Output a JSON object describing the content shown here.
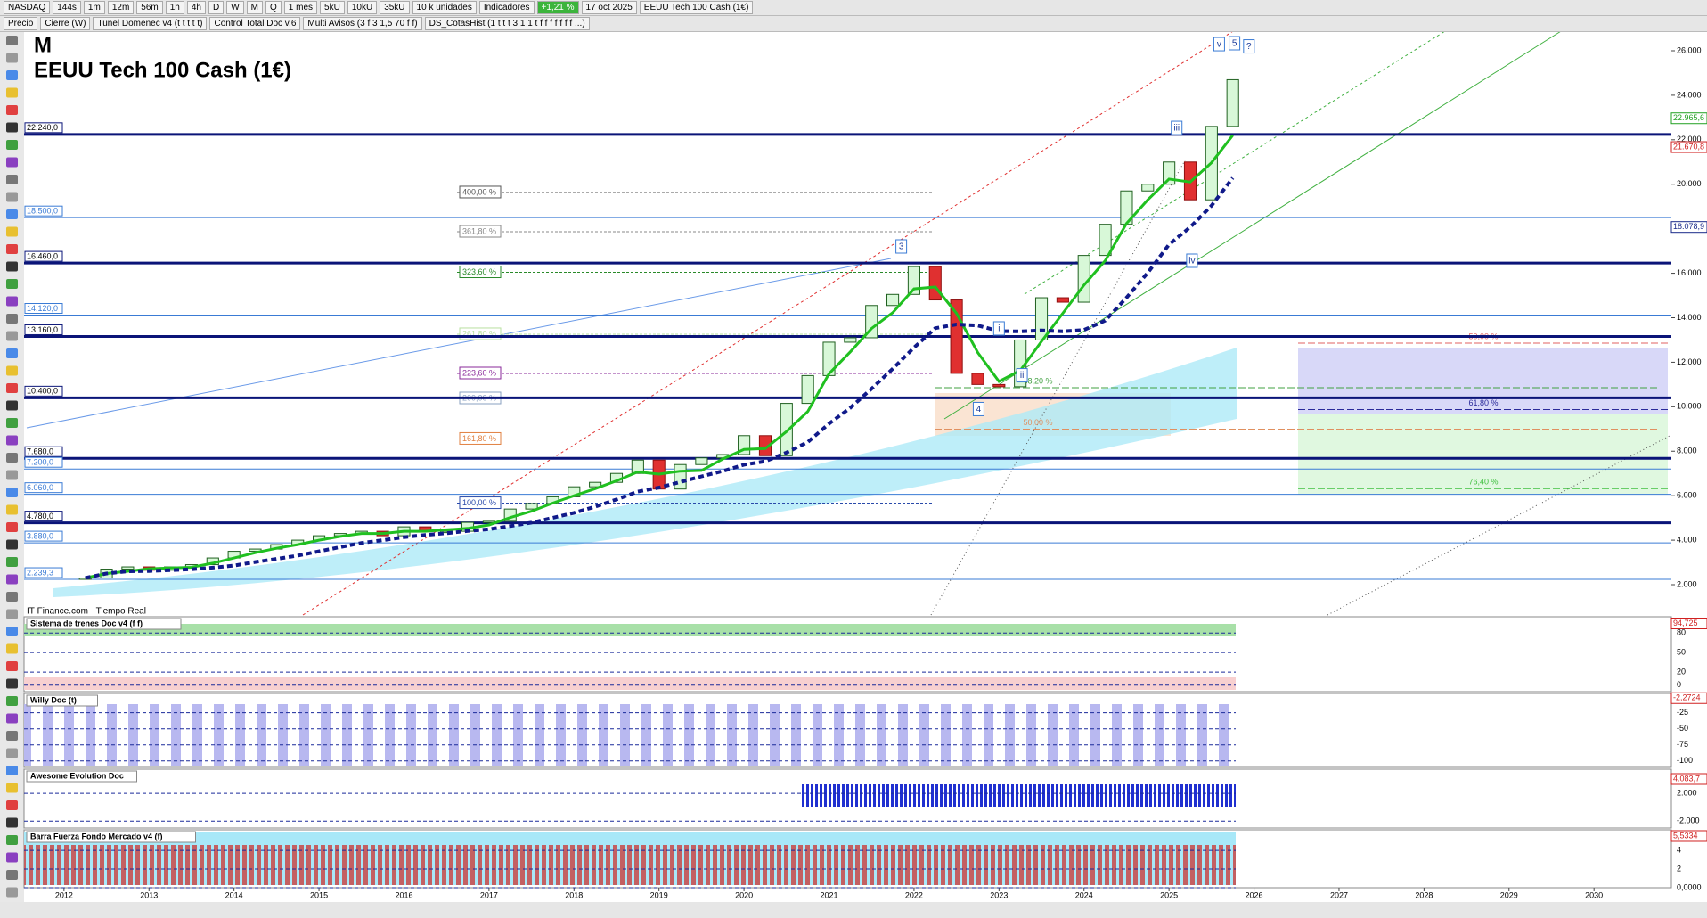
{
  "toolbar": {
    "items": [
      "NASDAQ",
      "144s",
      "1m",
      "12m",
      "56m",
      "1h",
      "4h",
      "D",
      "W",
      "M",
      "Q",
      "1 mes",
      "5kU",
      "10kU",
      "35kU",
      "10 k unidades",
      "Indicadores"
    ],
    "change": "+1,21 %",
    "date": "17 oct 2025",
    "instrument": "EEUU Tech 100 Cash (1€)"
  },
  "indicators": [
    "Precio",
    "Cierre (W)",
    "Tunel Domenec v4 (t t t t t)",
    "Control Total Doc v.6",
    "Multi Avisos (3 f 3 1,5 70 f f)",
    "DS_CotasHist (1 t t t 3 1 1 t f f f f f f f ...)"
  ],
  "chart": {
    "type": "candlestick",
    "period": "M",
    "title": "EEUU Tech 100 Cash (1€)",
    "source": "IT-Finance.com - Tiempo Real",
    "x": [
      2012.25,
      2012.5,
      2012.75,
      2013,
      2013.25,
      2013.5,
      2013.75,
      2014,
      2014.25,
      2014.5,
      2014.75,
      2015,
      2015.25,
      2015.5,
      2015.75,
      2016,
      2016.25,
      2016.5,
      2016.75,
      2017,
      2017.25,
      2017.5,
      2017.75,
      2018,
      2018.25,
      2018.5,
      2018.75,
      2019,
      2019.25,
      2019.5,
      2019.75,
      2020,
      2020.25,
      2020.5,
      2020.75,
      2021,
      2021.25,
      2021.5,
      2021.75,
      2022,
      2022.25,
      2022.5,
      2022.75,
      2023,
      2023.25,
      2023.5,
      2023.75,
      2024,
      2024.25,
      2024.5,
      2024.75,
      2025,
      2025.25,
      2025.5,
      2025.75
    ],
    "closes": [
      2300,
      2700,
      2800,
      2650,
      2800,
      2900,
      3200,
      3500,
      3600,
      3800,
      4000,
      4200,
      4300,
      4400,
      4200,
      4600,
      4400,
      4400,
      4800,
      4850,
      5400,
      5650,
      5950,
      6400,
      6600,
      7000,
      7600,
      6300,
      7400,
      7700,
      7850,
      8700,
      7800,
      10150,
      11400,
      12900,
      13100,
      14550,
      15050,
      16300,
      14800,
      11500,
      11000,
      10900,
      13000,
      14900,
      14700,
      16800,
      18200,
      19700,
      20000,
      21000,
      19300,
      22600,
      24700
    ],
    "xlim": [
      2011.53,
      2030.91
    ],
    "xticks": [
      2012,
      2013,
      2014,
      2015,
      2016,
      2017,
      2018,
      2019,
      2020,
      2021,
      2022,
      2023,
      2024,
      2025,
      2026,
      2027,
      2028,
      2029,
      2030
    ],
    "ylim": [
      638,
      26801
    ],
    "yticks": [
      {
        "value": 2000,
        "label": "2.000"
      },
      {
        "value": 4000,
        "label": "4.000"
      },
      {
        "value": 6000,
        "label": "6.000"
      },
      {
        "value": 8000,
        "label": "8.000"
      },
      {
        "value": 10000,
        "label": "10.000"
      },
      {
        "value": 12000,
        "label": "12.000"
      },
      {
        "value": 14000,
        "label": "14.000"
      },
      {
        "value": 16000,
        "label": "16.000"
      },
      {
        "value": 18000,
        "label": "18.000"
      },
      {
        "value": 20000,
        "label": "20.000"
      },
      {
        "value": 22000,
        "label": "22.000"
      },
      {
        "value": 24000,
        "label": "24.000"
      },
      {
        "value": 26000,
        "label": "26.000"
      }
    ],
    "levels": [
      {
        "value": 22240,
        "label": "22.240,0",
        "weight": "heavy"
      },
      {
        "value": 18500,
        "label": "18.500,0",
        "weight": "light"
      },
      {
        "value": 16460,
        "label": "16.460,0",
        "weight": "heavy"
      },
      {
        "value": 14120,
        "label": "14.120,0",
        "weight": "light"
      },
      {
        "value": 13160,
        "label": "13.160,0",
        "weight": "heavy"
      },
      {
        "value": 10400,
        "label": "10.400,0",
        "weight": "heavy"
      },
      {
        "value": 7680,
        "label": "7.680,0",
        "weight": "heavy"
      },
      {
        "value": 7200,
        "label": "7.200,0",
        "weight": "light"
      },
      {
        "value": 6060,
        "label": "6.060,0",
        "weight": "light"
      },
      {
        "value": 4780,
        "label": "4.780,0",
        "weight": "heavy"
      },
      {
        "value": 3880,
        "label": "3.880,0",
        "weight": "light"
      },
      {
        "value": 2239.3,
        "label": "2.239,3",
        "weight": "light"
      }
    ],
    "right_labels": [
      {
        "value": 22965.6,
        "label": "22.965,6",
        "color": "#22a022"
      },
      {
        "value": 21670.8,
        "label": "21.670,8",
        "color": "#d02020"
      },
      {
        "value": 18078.9,
        "label": "18.078,9",
        "color": "#1a2a8a"
      }
    ],
    "fibs": [
      {
        "value": 19630,
        "label": "400,00 %",
        "color": "#555555"
      },
      {
        "value": 17866,
        "label": "361,80 %",
        "color": "#888888"
      },
      {
        "value": 16043,
        "label": "323,60 %",
        "color": "#2a8a2a"
      },
      {
        "value": 13260,
        "label": "261,80 %",
        "color": "#b8e0a0"
      },
      {
        "value": 11496,
        "label": "223,60 %",
        "color": "#8a2a9a"
      },
      {
        "value": 10374,
        "label": "200,00 %",
        "color": "#8aa0c0"
      },
      {
        "value": 8553,
        "label": "161,80 %",
        "color": "#e08040"
      },
      {
        "value": 5664,
        "label": "100,00 %",
        "color": "#2a4aaa"
      }
    ],
    "fibs_right": [
      {
        "value": 12858,
        "label": "50,00 %",
        "color": "#e06060"
      },
      {
        "value": 9874,
        "label": "61,80 %",
        "color": "#2a2a9a"
      },
      {
        "value": 6315,
        "label": "76,40 %",
        "color": "#40c040"
      },
      {
        "value": 10855,
        "label": "38,20 %",
        "color": "#40a040"
      },
      {
        "value": 8994,
        "label": "50,00 %",
        "color": "#e09060"
      }
    ],
    "waves": [
      {
        "label": "3",
        "x": 2021.85,
        "y": 17185
      },
      {
        "label": "4",
        "x": 2022.76,
        "y": 9875
      },
      {
        "label": "i",
        "x": 2023.0,
        "y": 13500
      },
      {
        "label": "ii",
        "x": 2023.27,
        "y": 11393
      },
      {
        "label": "iii",
        "x": 2025.09,
        "y": 22512
      },
      {
        "label": "iv",
        "x": 2025.27,
        "y": 16544
      },
      {
        "label": "v",
        "x": 2025.59,
        "y": 26278
      },
      {
        "label": "5",
        "x": 2025.77,
        "y": 26320
      },
      {
        "label": "?",
        "x": 2025.94,
        "y": 26178
      }
    ]
  },
  "panels": [
    {
      "title": "Sistema de trenes Doc v4 (f f)",
      "ylim": [
        -10,
        105
      ],
      "yticks": [
        80,
        50,
        20,
        0
      ],
      "current": {
        "value": 94.725,
        "label": "94,725"
      }
    },
    {
      "title": "Willy Doc (t)",
      "ylim": [
        -110,
        5
      ],
      "yticks": [
        -25,
        -50,
        -75,
        -100
      ],
      "current": {
        "value": -2.2724,
        "label": "-2,2724"
      }
    },
    {
      "title": "Awesome Evolution Doc",
      "ylim": [
        -3000,
        5500
      ],
      "yticks": [
        {
          "value": 2000,
          "label": "2.000"
        },
        {
          "value": -2000,
          "label": "-2.000"
        }
      ],
      "current": {
        "value": 4083.7,
        "label": "4.083,7"
      }
    },
    {
      "title": "Barra Fuerza Fondo Mercado v4 (f)",
      "ylim": [
        0,
        6.2
      ],
      "yticks": [
        4,
        2,
        {
          "value": 0,
          "label": "0,0000"
        }
      ],
      "current": {
        "value": 5.5334,
        "label": "5,5334"
      }
    }
  ]
}
